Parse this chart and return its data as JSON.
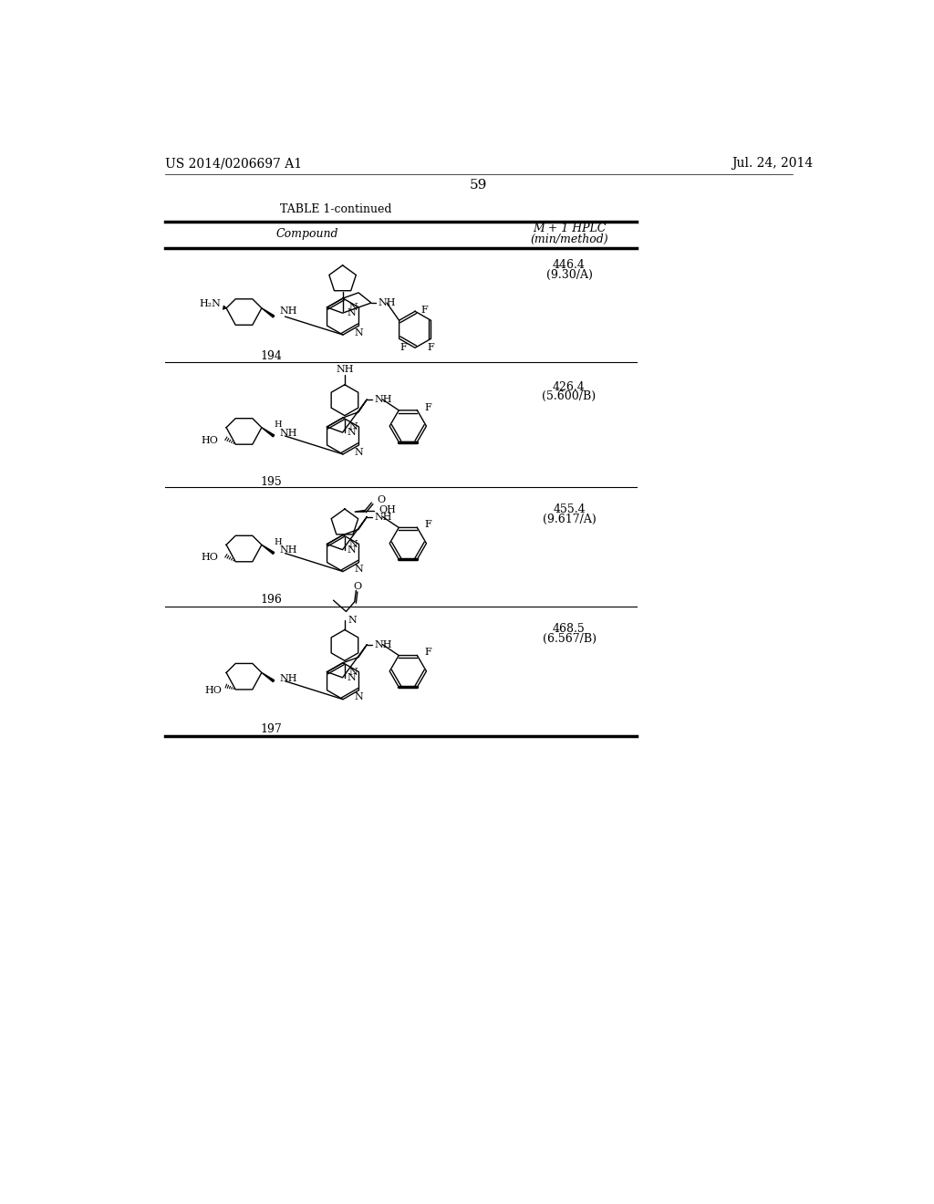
{
  "bg_color": "#ffffff",
  "header_left": "US 2014/0206697 A1",
  "header_right": "Jul. 24, 2014",
  "page_number": "59",
  "table_title": "TABLE 1-continued",
  "col1_header": "Compound",
  "col2_header_line1": "M + 1 HPLC",
  "col2_header_line2": "(min/method)",
  "compounds": [
    {
      "number": "194",
      "value": "446.4",
      "method": "(9.30/A)"
    },
    {
      "number": "195",
      "value": "426.4",
      "method": "(5.600/B)"
    },
    {
      "number": "196",
      "value": "455.4",
      "method": "(9.617/A)"
    },
    {
      "number": "197",
      "value": "468.5",
      "method": "(6.567/B)"
    }
  ]
}
